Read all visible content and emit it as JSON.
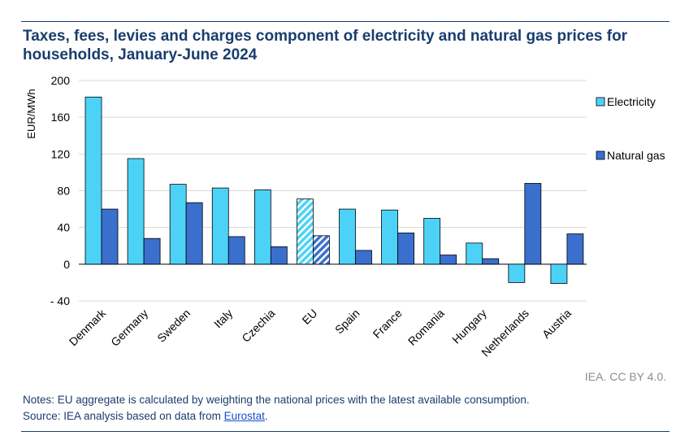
{
  "title": "Taxes, fees, levies and charges component of electricity and natural gas prices for households, January-June 2024",
  "credit": "IEA. CC BY 4.0.",
  "notes": {
    "notes_line": "Notes: EU aggregate is calculated by weighting the national prices with the latest available consumption.",
    "source_prefix": "Source: IEA analysis based on data from ",
    "source_link": "Eurostat",
    "source_suffix": "."
  },
  "colors": {
    "electricity": "#4dd2f7",
    "natural_gas": "#3a6fce",
    "title": "#1a3d6e",
    "grid": "#d9d9d9"
  },
  "chart_data": {
    "type": "bar",
    "title": "Taxes, fees, levies and charges component of electricity and natural gas prices for households, January-June 2024",
    "ylabel": "EUR/MWh",
    "xlabel": "",
    "ylim": [
      -40,
      200
    ],
    "yticks": [
      -40,
      0,
      40,
      80,
      120,
      160,
      200
    ],
    "ytick_labels": [
      "- 40",
      "0",
      "40",
      "80",
      "120",
      "160",
      "200"
    ],
    "categories": [
      "Denmark",
      "Germany",
      "Sweden",
      "Italy",
      "Czechia",
      "EU",
      "Spain",
      "France",
      "Romania",
      "Hungary",
      "Netherlands",
      "Austria"
    ],
    "hatched_category": "EU",
    "series": [
      {
        "name": "Electricity",
        "values": [
          182,
          115,
          87,
          83,
          81,
          71,
          60,
          59,
          50,
          23,
          -20,
          -21
        ]
      },
      {
        "name": "Natural gas",
        "values": [
          60,
          28,
          67,
          30,
          19,
          31,
          15,
          34,
          10,
          6,
          88,
          33
        ]
      }
    ],
    "legend": "right",
    "grid": true
  }
}
